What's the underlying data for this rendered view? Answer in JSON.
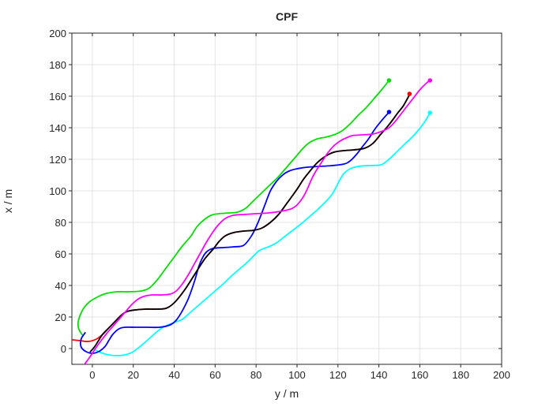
{
  "figure": {
    "title": "CPF",
    "xlabel": "y / m",
    "ylabel": "x / m"
  },
  "chart_data": {
    "type": "line",
    "title": "CPF",
    "xlabel": "y / m",
    "ylabel": "x / m",
    "xlim": [
      -10,
      200
    ],
    "ylim": [
      -10,
      200
    ],
    "xticks": [
      0,
      20,
      40,
      60,
      80,
      100,
      120,
      140,
      160,
      180,
      200
    ],
    "yticks": [
      0,
      20,
      40,
      60,
      80,
      100,
      120,
      140,
      160,
      180,
      200
    ],
    "grid": true,
    "grid_color": "#e4e4e4",
    "axis_color": "#262626",
    "line_width": 1.8,
    "series": [
      {
        "name": "red-path",
        "color": "#FF0000",
        "points": [
          [
            -9.5,
            5.5
          ],
          [
            -6,
            5
          ],
          [
            -2,
            4.5
          ],
          [
            2,
            6
          ],
          [
            5,
            9
          ],
          [
            8,
            13
          ],
          [
            11,
            17
          ],
          [
            14,
            21
          ],
          [
            17,
            23.5
          ],
          [
            21,
            24.5
          ],
          [
            26,
            25
          ],
          [
            31,
            25
          ],
          [
            36,
            25.5
          ],
          [
            40,
            29
          ],
          [
            45,
            37
          ],
          [
            50,
            47
          ],
          [
            55,
            57
          ],
          [
            59,
            63
          ],
          [
            62,
            68
          ],
          [
            65,
            71.5
          ],
          [
            69,
            73.5
          ],
          [
            74,
            74.5
          ],
          [
            79,
            75
          ],
          [
            83,
            76.5
          ],
          [
            87,
            80
          ],
          [
            91,
            85
          ],
          [
            95,
            92
          ],
          [
            100,
            101
          ],
          [
            103,
            107
          ],
          [
            106,
            112
          ],
          [
            110,
            118
          ],
          [
            114,
            122
          ],
          [
            118,
            124.5
          ],
          [
            123,
            125.5
          ],
          [
            128,
            126
          ],
          [
            133,
            127
          ],
          [
            137,
            130
          ],
          [
            141,
            136
          ],
          [
            145,
            142
          ],
          [
            149,
            149
          ],
          [
            152,
            154
          ],
          [
            155,
            161
          ]
        ]
      },
      {
        "name": "green-path",
        "color": "#00E100",
        "points": [
          [
            -4.5,
            8
          ],
          [
            -6.5,
            12
          ],
          [
            -7,
            16
          ],
          [
            -6,
            21
          ],
          [
            -4,
            26
          ],
          [
            -1,
            30
          ],
          [
            3,
            33
          ],
          [
            7,
            35
          ],
          [
            12,
            36
          ],
          [
            18,
            36
          ],
          [
            24,
            36.5
          ],
          [
            28,
            38.5
          ],
          [
            32,
            44
          ],
          [
            36,
            51
          ],
          [
            40,
            58
          ],
          [
            44,
            65
          ],
          [
            48,
            71
          ],
          [
            51,
            77
          ],
          [
            54,
            81
          ],
          [
            58,
            84.5
          ],
          [
            62,
            85.5
          ],
          [
            67,
            86
          ],
          [
            71,
            86.5
          ],
          [
            75,
            89
          ],
          [
            79,
            94
          ],
          [
            83,
            99
          ],
          [
            87,
            104
          ],
          [
            91,
            109
          ],
          [
            95,
            115
          ],
          [
            99,
            121
          ],
          [
            103,
            127
          ],
          [
            106,
            130.5
          ],
          [
            110,
            133
          ],
          [
            114,
            134
          ],
          [
            118,
            135.5
          ],
          [
            122,
            138
          ],
          [
            126,
            142.5
          ],
          [
            130,
            148
          ],
          [
            134,
            153
          ],
          [
            138,
            159
          ],
          [
            141,
            163.5
          ],
          [
            145,
            170
          ]
        ]
      },
      {
        "name": "cyan-path",
        "color": "#00FFFF",
        "points": [
          [
            1,
            -0.5
          ],
          [
            4,
            -2.5
          ],
          [
            8,
            -4
          ],
          [
            12,
            -4.5
          ],
          [
            16,
            -4
          ],
          [
            20,
            -2
          ],
          [
            24,
            2
          ],
          [
            28,
            6.5
          ],
          [
            31,
            10
          ],
          [
            34,
            13
          ],
          [
            37,
            15
          ],
          [
            41,
            17
          ],
          [
            44,
            18.5
          ],
          [
            48,
            23
          ],
          [
            52,
            27.5
          ],
          [
            56,
            32
          ],
          [
            60,
            36.5
          ],
          [
            64,
            41
          ],
          [
            68,
            46
          ],
          [
            72,
            50.5
          ],
          [
            76,
            55
          ],
          [
            79,
            59
          ],
          [
            81.5,
            62
          ],
          [
            84,
            63.5
          ],
          [
            87,
            65
          ],
          [
            90,
            67
          ],
          [
            94,
            71
          ],
          [
            98,
            75
          ],
          [
            102,
            79
          ],
          [
            106,
            83.5
          ],
          [
            110,
            88
          ],
          [
            114,
            93
          ],
          [
            117,
            97.5
          ],
          [
            119,
            102
          ],
          [
            121,
            107
          ],
          [
            123,
            111
          ],
          [
            126,
            114
          ],
          [
            130,
            115.5
          ],
          [
            135,
            116
          ],
          [
            141,
            116.5
          ],
          [
            145,
            120
          ],
          [
            149,
            125
          ],
          [
            153,
            130
          ],
          [
            157,
            135
          ],
          [
            160,
            139.5
          ],
          [
            162,
            143
          ],
          [
            164,
            147
          ],
          [
            165,
            149.5
          ]
        ]
      },
      {
        "name": "blue-path",
        "color": "#0000FF",
        "points": [
          [
            -3.5,
            10
          ],
          [
            -5.5,
            6
          ],
          [
            -5.5,
            1
          ],
          [
            -3,
            -2
          ],
          [
            0,
            -3
          ],
          [
            3,
            -2
          ],
          [
            6,
            1
          ],
          [
            8,
            5
          ],
          [
            10,
            9
          ],
          [
            13,
            12.5
          ],
          [
            16,
            13.5
          ],
          [
            21,
            13.5
          ],
          [
            27,
            13.5
          ],
          [
            33,
            13.5
          ],
          [
            38,
            15
          ],
          [
            41,
            18
          ],
          [
            44,
            24
          ],
          [
            47,
            32
          ],
          [
            50,
            43
          ],
          [
            52,
            52
          ],
          [
            54,
            58
          ],
          [
            56,
            61.5
          ],
          [
            59,
            63.5
          ],
          [
            64,
            64
          ],
          [
            69,
            64.5
          ],
          [
            74,
            65.5
          ],
          [
            78,
            72
          ],
          [
            81,
            80
          ],
          [
            84,
            90
          ],
          [
            87,
            100
          ],
          [
            90,
            106
          ],
          [
            93,
            110
          ],
          [
            96,
            112.5
          ],
          [
            100,
            114
          ],
          [
            105,
            115
          ],
          [
            111,
            115.5
          ],
          [
            117,
            116
          ],
          [
            123,
            117
          ],
          [
            126,
            119
          ],
          [
            129,
            123
          ],
          [
            132,
            128
          ],
          [
            135,
            133
          ],
          [
            138,
            139
          ],
          [
            141,
            144
          ],
          [
            143,
            147
          ],
          [
            145,
            150
          ]
        ]
      },
      {
        "name": "black-path",
        "color": "#000000",
        "points": [
          [
            -1,
            -2
          ],
          [
            1,
            1
          ],
          [
            3,
            5
          ],
          [
            5,
            9
          ],
          [
            8,
            13
          ],
          [
            11,
            17
          ],
          [
            14,
            21
          ],
          [
            17,
            23.5
          ],
          [
            21,
            24.5
          ],
          [
            26,
            25
          ],
          [
            31,
            25
          ],
          [
            36,
            25.5
          ],
          [
            40,
            29
          ],
          [
            45,
            37
          ],
          [
            50,
            47
          ],
          [
            55,
            57
          ],
          [
            59,
            63
          ],
          [
            62,
            68
          ],
          [
            65,
            71.5
          ],
          [
            69,
            73.5
          ],
          [
            74,
            74.5
          ],
          [
            79,
            75
          ],
          [
            83,
            76.5
          ],
          [
            87,
            80
          ],
          [
            91,
            85
          ],
          [
            95,
            92
          ],
          [
            100,
            101
          ],
          [
            103,
            107
          ],
          [
            106,
            112
          ],
          [
            110,
            118
          ],
          [
            114,
            122
          ],
          [
            118,
            124.5
          ],
          [
            123,
            125.5
          ],
          [
            128,
            126
          ],
          [
            133,
            127
          ],
          [
            137,
            130
          ],
          [
            141,
            136
          ],
          [
            145,
            142
          ],
          [
            149,
            149
          ],
          [
            152,
            154
          ],
          [
            155,
            161
          ]
        ]
      },
      {
        "name": "magenta-path",
        "color": "#FF00FF",
        "points": [
          [
            -3.5,
            -9.5
          ],
          [
            -1,
            -5
          ],
          [
            1.5,
            0
          ],
          [
            4,
            4.5
          ],
          [
            7,
            9.5
          ],
          [
            10,
            14
          ],
          [
            13,
            18.5
          ],
          [
            16,
            23
          ],
          [
            19,
            27.5
          ],
          [
            22,
            31
          ],
          [
            25,
            33
          ],
          [
            29,
            34
          ],
          [
            34,
            34
          ],
          [
            38,
            34.5
          ],
          [
            41,
            36.5
          ],
          [
            44,
            41
          ],
          [
            47,
            47
          ],
          [
            50,
            54
          ],
          [
            53,
            61
          ],
          [
            56,
            68
          ],
          [
            59,
            74
          ],
          [
            62,
            79
          ],
          [
            65,
            82.5
          ],
          [
            69,
            84.5
          ],
          [
            74,
            85
          ],
          [
            80,
            85.5
          ],
          [
            86,
            86
          ],
          [
            92,
            87
          ],
          [
            97,
            88.5
          ],
          [
            100,
            91
          ],
          [
            103,
            96
          ],
          [
            105,
            101
          ],
          [
            107,
            107
          ],
          [
            109,
            112
          ],
          [
            112,
            118
          ],
          [
            115,
            124
          ],
          [
            118,
            128.5
          ],
          [
            121,
            131.5
          ],
          [
            124,
            133.5
          ],
          [
            127,
            135
          ],
          [
            132,
            135.5
          ],
          [
            137,
            136
          ],
          [
            141,
            137.5
          ],
          [
            145,
            140
          ],
          [
            148,
            144
          ],
          [
            151,
            149
          ],
          [
            154,
            154
          ],
          [
            157,
            159
          ],
          [
            160,
            164
          ],
          [
            163,
            168
          ],
          [
            165,
            170
          ]
        ]
      }
    ],
    "end_markers": [
      {
        "name": "green-endpoint",
        "color": "#00E100",
        "x": 145,
        "y": 170
      },
      {
        "name": "red-endpoint",
        "color": "#FF0000",
        "x": 155,
        "y": 161.5
      },
      {
        "name": "blue-endpoint",
        "color": "#0000FF",
        "x": 145,
        "y": 150
      },
      {
        "name": "magenta-endpoint",
        "color": "#FF00FF",
        "x": 165,
        "y": 170
      },
      {
        "name": "cyan-endpoint",
        "color": "#00FFFF",
        "x": 165,
        "y": 149.5
      }
    ]
  }
}
